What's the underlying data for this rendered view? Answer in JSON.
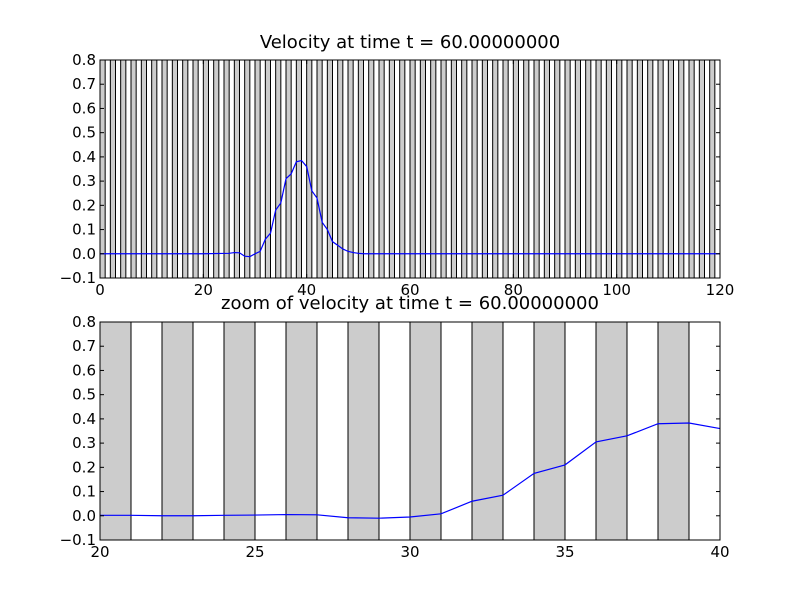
{
  "chart_data": [
    {
      "type": "line",
      "title": "Velocity at time t =    60.00000000",
      "xlim": [
        0,
        120
      ],
      "ylim": [
        -0.1,
        0.8
      ],
      "xticks": [
        0,
        20,
        40,
        60,
        80,
        100,
        120
      ],
      "yticks": [
        -0.1,
        0.0,
        0.1,
        0.2,
        0.3,
        0.4,
        0.5,
        0.6,
        0.7,
        0.8
      ],
      "xtick_labels": [
        "0",
        "20",
        "40",
        "60",
        "80",
        "100",
        "120"
      ],
      "ytick_labels": [
        "−0.1",
        "0.0",
        "0.1",
        "0.2",
        "0.3",
        "0.4",
        "0.5",
        "0.6",
        "0.7",
        "0.8"
      ],
      "shaded_cells": {
        "start": 0,
        "end": 120,
        "width": 1,
        "every": 2,
        "color": "#cccccc"
      },
      "grid": false,
      "series": [
        {
          "color": "#0000ff",
          "x": [
            0,
            20,
            25,
            26,
            27,
            28,
            29,
            30,
            31,
            32,
            33,
            34,
            35,
            36,
            37,
            38,
            39,
            40,
            41,
            42,
            43,
            44,
            45,
            46,
            47,
            48,
            49,
            50,
            51,
            52,
            55,
            60,
            80,
            100,
            120
          ],
          "y": [
            0.0,
            0.0,
            0.002,
            0.005,
            0.004,
            -0.01,
            -0.012,
            0.0,
            0.01,
            0.06,
            0.085,
            0.18,
            0.21,
            0.31,
            0.33,
            0.38,
            0.385,
            0.36,
            0.26,
            0.23,
            0.13,
            0.1,
            0.05,
            0.035,
            0.02,
            0.01,
            0.005,
            0.002,
            0.0,
            0.0,
            0.0,
            0.0,
            0.0,
            0.0,
            0.0
          ]
        }
      ]
    },
    {
      "type": "line",
      "title": "zoom of velocity at time t =    60.00000000",
      "xlim": [
        20,
        40
      ],
      "ylim": [
        -0.1,
        0.8
      ],
      "xticks": [
        20,
        25,
        30,
        35,
        40
      ],
      "yticks": [
        -0.1,
        0.0,
        0.1,
        0.2,
        0.3,
        0.4,
        0.5,
        0.6,
        0.7,
        0.8
      ],
      "xtick_labels": [
        "20",
        "25",
        "30",
        "35",
        "40"
      ],
      "ytick_labels": [
        "−0.1",
        "0.0",
        "0.1",
        "0.2",
        "0.3",
        "0.4",
        "0.5",
        "0.6",
        "0.7",
        "0.8"
      ],
      "shaded_cells": {
        "start": 20,
        "end": 40,
        "width": 1,
        "every": 2,
        "color": "#cccccc"
      },
      "grid": false,
      "series": [
        {
          "color": "#0000ff",
          "x": [
            20,
            21,
            22,
            23,
            24,
            25,
            26,
            27,
            28,
            29,
            30,
            31,
            32,
            33,
            34,
            35,
            36,
            37,
            38,
            39,
            40
          ],
          "y": [
            0.002,
            0.002,
            0.0,
            0.0,
            0.002,
            0.003,
            0.005,
            0.004,
            -0.008,
            -0.01,
            -0.005,
            0.008,
            0.06,
            0.085,
            0.175,
            0.21,
            0.305,
            0.33,
            0.38,
            0.383,
            0.36
          ]
        }
      ]
    }
  ]
}
